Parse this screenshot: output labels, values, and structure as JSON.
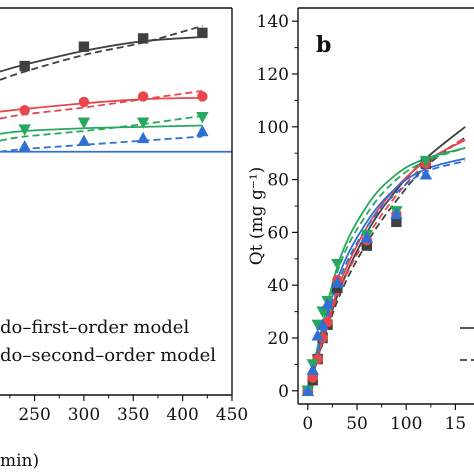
{
  "chart_data": [
    {
      "type": "scatter",
      "panel_label": "",
      "x_ticks": [
        "250",
        "300",
        "350",
        "400",
        "450"
      ],
      "xlabel": "min)",
      "xlim": [
        215,
        450
      ],
      "ylim": [
        0,
        140
      ],
      "y_ticks": [],
      "legend": {
        "placement": "bottom-left",
        "entries": [
          {
            "label": "do–first–order model",
            "style": "solid"
          },
          {
            "label": "do–second–order model",
            "style": "dashed"
          }
        ]
      },
      "series": [
        {
          "color": "#404040",
          "marker": "square",
          "x": [
            240,
            300,
            360,
            420
          ],
          "y": [
            119,
            126,
            129,
            131
          ],
          "fit_solid": [
            [
              215,
              117
            ],
            [
              240,
              119.5
            ],
            [
              300,
              124.5
            ],
            [
              360,
              128
            ],
            [
              420,
              129.5
            ]
          ],
          "fit_dashed": [
            [
              215,
              114
            ],
            [
              240,
              117
            ],
            [
              300,
              123
            ],
            [
              360,
              127.5
            ],
            [
              420,
              133.5
            ]
          ]
        },
        {
          "color": "#e8474a",
          "marker": "circle",
          "x": [
            240,
            300,
            360,
            420
          ],
          "y": [
            103,
            106,
            108,
            108
          ],
          "fit_solid": [
            [
              215,
              102.5
            ],
            [
              240,
              103.5
            ],
            [
              300,
              105.5
            ],
            [
              360,
              107
            ],
            [
              420,
              107.5
            ]
          ],
          "fit_dashed": [
            [
              215,
              100
            ],
            [
              240,
              101.5
            ],
            [
              300,
              104
            ],
            [
              360,
              107
            ],
            [
              420,
              110
            ]
          ]
        },
        {
          "color": "#27a85f",
          "marker": "triangle-down",
          "x": [
            240,
            300,
            360,
            420
          ],
          "y": [
            96,
            98.5,
            98.5,
            100.5
          ],
          "fit_solid": [
            [
              215,
              94.5
            ],
            [
              240,
              95.5
            ],
            [
              300,
              96.5
            ],
            [
              360,
              97
            ],
            [
              420,
              97.5
            ]
          ],
          "fit_dashed": [
            [
              215,
              92
            ],
            [
              240,
              93.5
            ],
            [
              300,
              95.5
            ],
            [
              360,
              98
            ],
            [
              420,
              101
            ]
          ]
        },
        {
          "color": "#2f6fd6",
          "marker": "triangle-up",
          "x": [
            240,
            300,
            360,
            420
          ],
          "y": [
            90,
            92,
            93,
            95.5
          ],
          "fit_solid": [
            [
              215,
              88
            ],
            [
              450,
              88
            ]
          ],
          "fit_dashed": [
            [
              215,
              88
            ],
            [
              240,
              89
            ],
            [
              300,
              90.5
            ],
            [
              360,
              92
            ],
            [
              420,
              93.5
            ]
          ]
        }
      ]
    },
    {
      "type": "scatter",
      "panel_label": "b",
      "xlabel": "",
      "ylabel": "Qt (mg g⁻¹)",
      "xlim": [
        -10,
        175
      ],
      "ylim": [
        -5,
        145
      ],
      "x_ticks": [
        "0",
        "50",
        "100",
        "15"
      ],
      "y_ticks": [
        "0",
        "20",
        "40",
        "60",
        "80",
        "100",
        "120",
        "140"
      ],
      "series": [
        {
          "color": "#404040",
          "marker": "square",
          "x": [
            0,
            5,
            10,
            15,
            20,
            30,
            60,
            90,
            120
          ],
          "y": [
            0,
            4,
            12,
            20,
            25,
            39,
            55,
            64,
            86
          ],
          "fit_solid": [
            [
              0,
              0
            ],
            [
              30,
              36
            ],
            [
              60,
              60
            ],
            [
              90,
              76
            ],
            [
              120,
              88
            ],
            [
              160,
              100
            ]
          ],
          "fit_dashed": [
            [
              0,
              0
            ],
            [
              30,
              34
            ],
            [
              60,
              56
            ],
            [
              90,
              72
            ],
            [
              120,
              85
            ],
            [
              160,
              96
            ]
          ]
        },
        {
          "color": "#e8474a",
          "marker": "circle",
          "x": [
            0,
            5,
            10,
            15,
            20,
            30,
            60,
            90,
            120
          ],
          "y": [
            0,
            5,
            12,
            20,
            26,
            42,
            57,
            67,
            86
          ],
          "fit_solid": [
            [
              0,
              0
            ],
            [
              30,
              38
            ],
            [
              60,
              62
            ],
            [
              90,
              77
            ],
            [
              120,
              87
            ],
            [
              160,
              95
            ]
          ],
          "fit_dashed": [
            [
              0,
              0
            ],
            [
              30,
              36
            ],
            [
              60,
              58
            ],
            [
              90,
              74
            ],
            [
              120,
              86
            ],
            [
              160,
              96
            ]
          ]
        },
        {
          "color": "#27a85f",
          "marker": "triangle-down",
          "x": [
            0,
            5,
            10,
            15,
            20,
            30,
            60,
            90,
            120
          ],
          "y": [
            0,
            10,
            25,
            30,
            34,
            48,
            59,
            68,
            87
          ],
          "fit_solid": [
            [
              0,
              0
            ],
            [
              30,
              47
            ],
            [
              60,
              70
            ],
            [
              90,
              82
            ],
            [
              120,
              88
            ],
            [
              160,
              92
            ]
          ],
          "fit_dashed": [
            [
              0,
              0
            ],
            [
              30,
              45
            ],
            [
              60,
              67
            ],
            [
              90,
              80
            ],
            [
              120,
              87
            ],
            [
              160,
              92
            ]
          ]
        },
        {
          "color": "#2f6fd6",
          "marker": "triangle-up",
          "x": [
            0,
            5,
            10,
            15,
            20,
            30,
            60,
            90,
            120
          ],
          "y": [
            0,
            8,
            21,
            25,
            33,
            41,
            58,
            67,
            82
          ],
          "fit_solid": [
            [
              0,
              0
            ],
            [
              30,
              42
            ],
            [
              60,
              64
            ],
            [
              90,
              77
            ],
            [
              120,
              84
            ],
            [
              160,
              88
            ]
          ],
          "fit_dashed": [
            [
              0,
              0
            ],
            [
              30,
              40
            ],
            [
              60,
              62
            ],
            [
              90,
              75
            ],
            [
              120,
              83
            ],
            [
              160,
              87
            ]
          ]
        }
      ],
      "legend": {
        "placement": "bottom-right",
        "entries": [
          {
            "label": "",
            "style": "solid",
            "color": "#404040"
          },
          {
            "label": "",
            "style": "dashed",
            "color": "#404040"
          }
        ]
      }
    }
  ]
}
